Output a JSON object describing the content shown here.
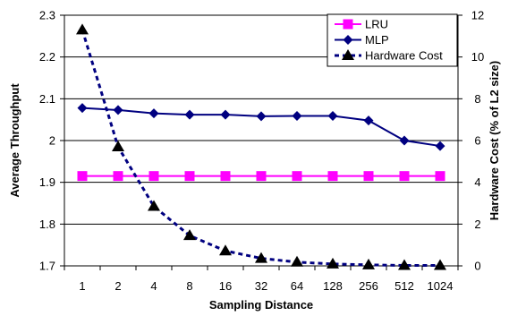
{
  "chart_data": {
    "type": "line",
    "title": "",
    "xlabel": "Sampling Distance",
    "ylabel_left": "Average Throughput",
    "ylabel_right": "Hardware Cost (% of L2 size)",
    "categories": [
      "1",
      "2",
      "4",
      "8",
      "16",
      "32",
      "64",
      "128",
      "256",
      "512",
      "1024"
    ],
    "y_left": {
      "min": 1.7,
      "max": 2.3,
      "ticks": [
        "1.7",
        "1.8",
        "1.9",
        "2",
        "2.1",
        "2.2",
        "2.3"
      ]
    },
    "y_right": {
      "min": 0,
      "max": 12,
      "ticks": [
        "0",
        "2",
        "4",
        "6",
        "8",
        "10",
        "12"
      ]
    },
    "grid": true,
    "legend_position": "top-right",
    "series": [
      {
        "name": "LRU",
        "axis": "left",
        "color": "#ff00ff",
        "marker": "square",
        "line": "solid",
        "values": [
          1.915,
          1.915,
          1.915,
          1.915,
          1.915,
          1.915,
          1.915,
          1.915,
          1.915,
          1.915,
          1.915
        ]
      },
      {
        "name": "MLP",
        "axis": "left",
        "color": "#000080",
        "marker": "diamond",
        "line": "solid",
        "values": [
          2.078,
          2.073,
          2.065,
          2.062,
          2.062,
          2.058,
          2.059,
          2.059,
          2.048,
          2.0,
          1.987
        ]
      },
      {
        "name": "Hardware Cost",
        "axis": "right",
        "color": "#000000",
        "line_color": "#000080",
        "marker": "triangle",
        "line": "dashed",
        "values": [
          11.3,
          5.7,
          2.85,
          1.45,
          0.72,
          0.36,
          0.18,
          0.09,
          0.05,
          0.02,
          0.02
        ]
      }
    ]
  }
}
